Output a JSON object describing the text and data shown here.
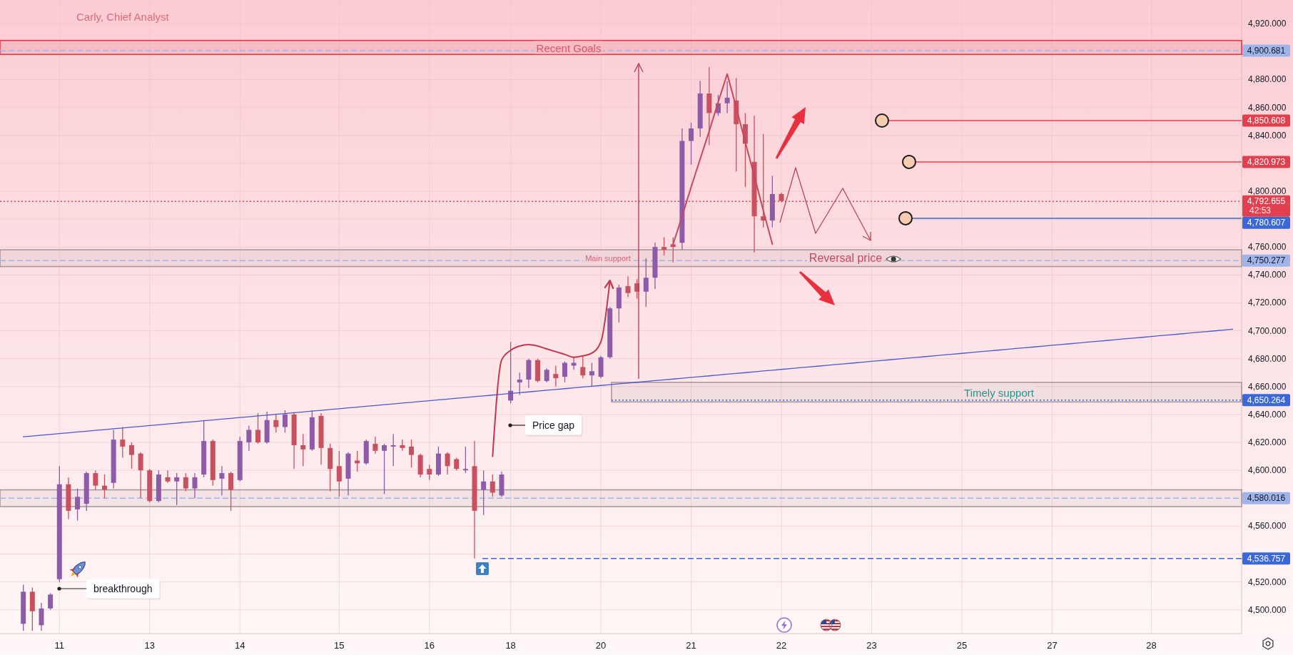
{
  "chart_data": {
    "type": "candlestick",
    "title": "Carly, Chief Analyst",
    "categories": [
      null,
      null,
      null,
      null,
      "11",
      null,
      null,
      null,
      null,
      null,
      null,
      null,
      null,
      null,
      "13",
      null,
      null,
      null,
      null,
      null,
      null,
      null,
      null,
      null,
      "14",
      null,
      null,
      null,
      null,
      null,
      null,
      null,
      null,
      null,
      null,
      "15",
      null,
      null,
      null,
      null,
      null,
      null,
      null,
      null,
      null,
      "16",
      null,
      null,
      null,
      null,
      null,
      null,
      null,
      null,
      "18",
      null,
      null,
      null,
      null,
      null,
      null,
      null,
      null,
      null,
      "20",
      null,
      null,
      null,
      null,
      null,
      null,
      null,
      null,
      null,
      "21",
      null,
      null,
      null,
      null,
      null,
      null,
      null,
      null,
      null,
      "22",
      null,
      null,
      null,
      null,
      null,
      null,
      null,
      null,
      null,
      "23",
      null,
      null,
      null,
      null,
      null,
      null,
      null,
      null,
      null,
      "25",
      null,
      null,
      null,
      null,
      null,
      null,
      null,
      null,
      null,
      "27",
      null,
      null,
      null,
      null,
      null,
      null,
      null,
      null,
      null,
      null,
      "28",
      null,
      null,
      null,
      null,
      null,
      null,
      null,
      null,
      null
    ],
    "ylim": [
      4483,
      4937
    ],
    "yticks": [
      {
        "value": 4500,
        "label": "4,500.000"
      },
      {
        "value": 4520,
        "label": "4,520.000"
      },
      {
        "value": 4540,
        "label": null
      },
      {
        "value": 4560,
        "label": "4,560.000"
      },
      {
        "value": 4600,
        "label": "4,600.000"
      },
      {
        "value": 4620,
        "label": "4,620.000"
      },
      {
        "value": 4640,
        "label": "4,640.000"
      },
      {
        "value": 4660,
        "label": "4,660.000"
      },
      {
        "value": 4680,
        "label": "4,680.000"
      },
      {
        "value": 4700,
        "label": "4,700.000"
      },
      {
        "value": 4720,
        "label": "4,720.000"
      },
      {
        "value": 4740,
        "label": "4,740.000"
      },
      {
        "value": 4760,
        "label": "4,760.000"
      },
      {
        "value": 4780,
        "label": null
      },
      {
        "value": 4800,
        "label": "4,800.000"
      },
      {
        "value": 4820,
        "label": null
      },
      {
        "value": 4840,
        "label": "4,840.000"
      },
      {
        "value": 4860,
        "label": "4,860.000"
      },
      {
        "value": 4880,
        "label": "4,880.000"
      },
      {
        "value": 4920,
        "label": "4,920.000"
      }
    ],
    "grid": true,
    "series": [
      {
        "ohlc": [
          [
            4490,
            4518,
            4485,
            4513
          ],
          [
            4513,
            4516,
            4485,
            4499
          ],
          [
            4489,
            4505,
            4485,
            4501
          ],
          [
            4501,
            4512,
            4500,
            4511
          ],
          [
            4522,
            4603,
            4520,
            4590
          ],
          [
            4590,
            4595,
            4565,
            4571
          ],
          [
            4572,
            4587,
            4564,
            4581
          ],
          [
            4576,
            4599,
            4571,
            4598
          ],
          [
            4598,
            4600,
            4586,
            4589
          ],
          [
            4589,
            4597,
            4580,
            4586
          ],
          [
            4591,
            4629,
            4587,
            4622
          ],
          [
            4622,
            4631,
            4609,
            4617
          ],
          [
            4618,
            4620,
            4601,
            4611
          ],
          [
            4612,
            4613,
            4580,
            4600
          ],
          [
            4600,
            4601,
            4577,
            4578
          ],
          [
            4578,
            4600,
            4577,
            4597
          ],
          [
            4595,
            4600,
            4591,
            4592
          ],
          [
            4592,
            4598,
            4575,
            4595
          ],
          [
            4595,
            4598,
            4585,
            4587
          ],
          [
            4587,
            4598,
            4580,
            4595
          ],
          [
            4597,
            4636,
            4595,
            4621
          ],
          [
            4621,
            4622,
            4589,
            4593
          ],
          [
            4594,
            4603,
            4582,
            4598
          ],
          [
            4598,
            4599,
            4571,
            4586
          ],
          [
            4593,
            4624,
            4592,
            4621
          ],
          [
            4620,
            4632,
            4614,
            4629
          ],
          [
            4629,
            4641,
            4619,
            4620
          ],
          [
            4620,
            4642,
            4619,
            4636
          ],
          [
            4636,
            4640,
            4627,
            4631
          ],
          [
            4631,
            4643,
            4627,
            4640
          ],
          [
            4640,
            4641,
            4601,
            4618
          ],
          [
            4618,
            4626,
            4603,
            4615
          ],
          [
            4615,
            4643,
            4614,
            4638
          ],
          [
            4639,
            4641,
            4604,
            4616
          ],
          [
            4616,
            4619,
            4585,
            4601
          ],
          [
            4603,
            4614,
            4581,
            4592
          ],
          [
            4594,
            4613,
            4582,
            4612
          ],
          [
            4607,
            4614,
            4599,
            4605
          ],
          [
            4605,
            4622,
            4604,
            4621
          ],
          [
            4619,
            4624,
            4612,
            4614
          ],
          [
            4614,
            4619,
            4583,
            4618
          ],
          [
            4617,
            4626,
            4603,
            4618
          ],
          [
            4618,
            4622,
            4614,
            4616
          ],
          [
            4617,
            4622,
            4602,
            4611
          ],
          [
            4611,
            4612,
            4595,
            4597
          ],
          [
            4601,
            4604,
            4593,
            4597
          ],
          [
            4597,
            4617,
            4596,
            4612
          ],
          [
            4612,
            4613,
            4597,
            4603
          ],
          [
            4608,
            4609,
            4600,
            4601
          ],
          [
            4600,
            4617,
            4598,
            4601
          ],
          [
            4603,
            4621,
            4537,
            4571
          ],
          [
            4586,
            4600,
            4568,
            4592
          ],
          [
            4592,
            4597,
            4581,
            4584
          ],
          [
            4582,
            4599,
            4581,
            4597
          ],
          [
            4650,
            4692,
            4648,
            4657
          ],
          [
            4663,
            4670,
            4654,
            4665
          ],
          [
            4665,
            4680,
            4659,
            4679
          ],
          [
            4679,
            4680,
            4663,
            4664
          ],
          [
            4664,
            4673,
            4663,
            4672
          ],
          [
            4669,
            4675,
            4660,
            4666
          ],
          [
            4667,
            4678,
            4663,
            4677
          ],
          [
            4675,
            4681,
            4672,
            4677
          ],
          [
            4674,
            4682,
            4666,
            4668
          ],
          [
            4668,
            4677,
            4660,
            4671
          ],
          [
            4667,
            4682,
            4666,
            4681
          ],
          [
            4681,
            4717,
            4680,
            4716
          ],
          [
            4716,
            4733,
            4706,
            4731
          ],
          [
            4732,
            4739,
            4724,
            4727
          ],
          [
            4734,
            4737,
            4723,
            4728
          ],
          [
            4728,
            4752,
            4717,
            4738
          ],
          [
            4738,
            4763,
            4730,
            4760
          ],
          [
            4760,
            4767,
            4754,
            4758
          ],
          [
            4762,
            4767,
            4749,
            4760
          ],
          [
            4763,
            4845,
            4758,
            4836
          ],
          [
            4836,
            4849,
            4819,
            4845
          ],
          [
            4845,
            4879,
            4839,
            4870
          ],
          [
            4870,
            4889,
            4833,
            4856
          ],
          [
            4856,
            4869,
            4854,
            4863
          ],
          [
            4863,
            4879,
            4856,
            4867
          ],
          [
            4865,
            4881,
            4814,
            4848
          ],
          [
            4848,
            4856,
            4803,
            4834
          ],
          [
            4821,
            4854,
            4756,
            4782
          ],
          [
            4782,
            4841,
            4774,
            4779
          ],
          [
            4779,
            4811,
            4774,
            4798
          ],
          [
            4798,
            4799,
            4792,
            4793
          ],
          null,
          null,
          null,
          null,
          null,
          null,
          null,
          null,
          null,
          null,
          null,
          null,
          null,
          null,
          null,
          null,
          null,
          null,
          null,
          null,
          null,
          null,
          null,
          null,
          null,
          null,
          null,
          null,
          null,
          null,
          null,
          null,
          null,
          null,
          null,
          null,
          null,
          null,
          null,
          null,
          null,
          null,
          null,
          null,
          null,
          null,
          null,
          null,
          null,
          null
        ],
        "colors": [
          "#8d5ba8",
          "#c8505f",
          "#8d5ba8",
          "#8d5ba8",
          "#8d5ba8",
          "#c8505f",
          "#8d5ba8",
          "#8d5ba8",
          "#c8505f",
          "#c8505f",
          "#8d5ba8",
          "#c8505f",
          "#c8505f",
          "#c8505f",
          "#c8505f",
          "#8d5ba8",
          "#c8505f",
          "#8d5ba8",
          "#c8505f",
          "#8d5ba8",
          "#8d5ba8",
          "#c8505f",
          "#8d5ba8",
          "#c8505f",
          "#8d5ba8",
          "#8d5ba8",
          "#c8505f",
          "#8d5ba8",
          "#c8505f",
          "#8d5ba8",
          "#c8505f",
          "#c8505f",
          "#8d5ba8",
          "#c8505f",
          "#c8505f",
          "#c8505f",
          "#8d5ba8",
          "#c8505f",
          "#8d5ba8",
          "#c8505f",
          "#8d5ba8",
          "#8d5ba8",
          "#c8505f",
          "#c8505f",
          "#c8505f",
          "#c8505f",
          "#8d5ba8",
          "#c8505f",
          "#c8505f",
          "#8d5ba8",
          "#c8505f",
          "#8d5ba8",
          "#c8505f",
          "#8d5ba8",
          "#8d5ba8",
          "#8d5ba8",
          "#8d5ba8",
          "#c8505f",
          "#8d5ba8",
          "#c8505f",
          "#8d5ba8",
          "#8d5ba8",
          "#c8505f",
          "#8d5ba8",
          "#8d5ba8",
          "#8d5ba8",
          "#8d5ba8",
          "#c8505f",
          "#c8505f",
          "#8d5ba8",
          "#8d5ba8",
          "#c8505f",
          "#c8505f",
          "#8d5ba8",
          "#8d5ba8",
          "#8d5ba8",
          "#c8505f",
          "#8d5ba8",
          "#8d5ba8",
          "#c8505f",
          "#c8505f",
          "#c8505f",
          "#c8505f",
          "#8d5ba8",
          "#c8505f",
          null,
          null,
          null,
          null,
          null,
          null,
          null,
          null,
          null,
          null,
          null,
          null,
          null,
          null,
          null,
          null,
          null,
          null,
          null,
          null,
          null,
          null,
          null,
          null,
          null,
          null,
          null,
          null,
          null,
          null,
          null,
          null,
          null,
          null,
          null,
          null,
          null,
          null,
          null,
          null,
          null,
          null,
          null,
          null,
          null,
          null,
          null,
          null,
          null,
          null
        ]
      },
      {
        "type": "line",
        "color": "#4b58cf",
        "values": [
          4624.0,
          4624.6,
          4625.2,
          4625.7,
          4626.3,
          4626.9,
          4627.5,
          4628.0,
          4628.6,
          4629.2,
          4629.8,
          4630.3,
          4630.9,
          4631.5,
          4632.1,
          4632.6,
          4633.2,
          4633.8,
          4634.4,
          4634.9,
          4635.5,
          4636.1,
          4636.7,
          4637.2,
          4637.8,
          4638.4,
          4639.0,
          4639.5,
          4640.1,
          4640.7,
          4641.3,
          4641.8,
          4642.4,
          4643.0,
          4643.6,
          4644.1,
          4644.7,
          4645.3,
          4645.9,
          4646.4,
          4647.0,
          4647.6,
          4648.2,
          4648.7,
          4649.3,
          4649.9,
          4650.5,
          4651.0,
          4651.6,
          4652.2,
          4652.8,
          4653.3,
          4653.9,
          4654.5,
          4655.1,
          4655.6,
          4656.2,
          4656.8,
          4657.4,
          4657.9,
          4658.5,
          4659.1,
          4659.7,
          4660.2,
          4660.8,
          4661.4,
          4662.0,
          4662.5,
          4663.1,
          4663.7,
          4664.3,
          4664.8,
          4665.4,
          4666.0,
          4666.6,
          4667.1,
          4667.7,
          4668.3,
          4668.9,
          4669.4,
          4670.0,
          4670.6,
          4671.2,
          4671.7,
          4672.3,
          4672.9,
          4673.5,
          4674.0,
          4674.6,
          4675.2,
          4675.8,
          4676.3,
          4676.9,
          4677.5,
          4678.1,
          4678.6,
          4679.2,
          4679.8,
          4680.4,
          4680.9,
          4681.5,
          4682.1,
          4682.7,
          4683.2,
          4683.8,
          4684.4,
          4685.0,
          4685.5,
          4686.1,
          4686.7,
          4687.3,
          4687.8,
          4688.4,
          4689.0,
          4689.6,
          4690.1,
          4690.7,
          4691.3,
          4691.9,
          4692.4,
          4693.0,
          4693.6,
          4694.2,
          4694.7,
          4695.3,
          4695.9,
          4696.5,
          4697.0,
          4697.6,
          4698.2,
          4698.8,
          4699.3,
          4699.9,
          4700.5,
          4701.1
        ]
      },
      {
        "type": "line",
        "color": "#c9475e",
        "values": [
          null,
          null,
          null,
          null,
          null,
          null,
          null,
          null,
          null,
          null,
          null,
          null,
          null,
          null,
          null,
          null,
          null,
          null,
          null,
          null,
          null,
          null,
          null,
          null,
          null,
          null,
          null,
          null,
          null,
          null,
          null,
          null,
          null,
          null,
          null,
          null,
          null,
          null,
          null,
          null,
          null,
          null,
          null,
          null,
          null,
          null,
          null,
          null,
          null,
          null,
          null,
          null,
          null,
          null,
          null,
          null,
          null,
          null,
          null,
          null,
          null,
          null,
          null,
          null,
          null,
          null,
          null,
          null,
          null,
          null,
          null,
          null,
          4762,
          4782,
          4803,
          4823,
          4843,
          4864,
          4884,
          4860,
          4835,
          4811,
          4786,
          4762,
          null,
          null,
          null,
          null,
          null,
          null,
          null,
          null,
          null,
          null,
          null,
          null,
          null,
          null,
          null,
          null,
          null,
          null,
          null,
          null,
          null,
          null,
          null,
          null,
          null,
          null,
          null,
          null,
          null,
          null,
          null,
          null,
          null,
          null,
          null,
          null,
          null,
          null,
          null,
          null,
          null,
          null,
          null,
          null,
          null,
          null,
          null,
          null,
          null,
          null,
          null
        ]
      },
      {
        "type": "line",
        "color": "#c0394f",
        "values": [
          null,
          null,
          null,
          null,
          null,
          null,
          null,
          null,
          null,
          null,
          null,
          null,
          null,
          null,
          null,
          null,
          null,
          null,
          null,
          null,
          null,
          null,
          null,
          null,
          null,
          null,
          null,
          null,
          null,
          null,
          null,
          null,
          null,
          null,
          null,
          null,
          null,
          null,
          null,
          null,
          null,
          null,
          null,
          null,
          null,
          null,
          null,
          null,
          null,
          null,
          null,
          null,
          4610,
          4679,
          4686,
          4689,
          4690,
          4689,
          4687,
          4685,
          4683,
          4681,
          4682,
          4684,
          4692,
          4736,
          null,
          null,
          null,
          null,
          null,
          null,
          null,
          null,
          null,
          null,
          null,
          null,
          null,
          null,
          null,
          null,
          null,
          null,
          null,
          null,
          null,
          null,
          null,
          null,
          null,
          null,
          null,
          null,
          null,
          null,
          null,
          null,
          null,
          null,
          null,
          null,
          null,
          null,
          null,
          null,
          null,
          null,
          null,
          null,
          null,
          null,
          null,
          null,
          null,
          null,
          null,
          null,
          null,
          null,
          null,
          null,
          null,
          null,
          null,
          null,
          null,
          null,
          null,
          null,
          null,
          null,
          null,
          null,
          null
        ]
      }
    ],
    "ref_lines": [
      {
        "axis": "y",
        "value": 4900.681,
        "label": "4,900.681",
        "color": "#9fb5ea",
        "line_style": "dashed"
      },
      {
        "axis": "y",
        "value": 4850.608,
        "label": "4,850.608",
        "color": "#e3404f",
        "line_style": "solid"
      },
      {
        "axis": "y",
        "value": 4820.973,
        "label": "4,820.973",
        "color": "#e3404f",
        "line_style": "solid"
      },
      {
        "axis": "y",
        "value": 4792.655,
        "label": "4,792.655",
        "color": "#e3404f",
        "line_style": "dotted"
      },
      {
        "axis": "y",
        "value": 4780.607,
        "label": "4,780.607",
        "color": "#3a68d8",
        "line_style": "solid"
      },
      {
        "axis": "y",
        "value": 4750.277,
        "label": "4,750.277",
        "color": "#9fb5ea",
        "line_style": "dashed"
      },
      {
        "axis": "y",
        "value": 4650.264,
        "label": "4,650.264",
        "color": "#3a68d8",
        "line_style": "dotted"
      },
      {
        "axis": "y",
        "value": 4580.016,
        "label": "4,580.016",
        "color": "#9fb5ea",
        "line_style": "dashed"
      },
      {
        "axis": "y",
        "value": 4536.757,
        "label": "4,536.757",
        "color": "#3a68d8",
        "line_style": "dashed"
      }
    ],
    "bands": [
      {
        "axis": "y",
        "from": 4898,
        "to": 4908,
        "label": "Recent Goals",
        "color": "#e0394a"
      },
      {
        "axis": "y",
        "from": 4746,
        "to": 4758,
        "label": "Main support",
        "color": "#a8999f"
      },
      {
        "axis": "y",
        "from": 4649,
        "to": 4663,
        "label": "Timely support",
        "color": "#a8999f"
      },
      {
        "axis": "y",
        "from": 4574,
        "to": 4586,
        "color": "#a8999f"
      }
    ],
    "annotations": [
      "breakthrough",
      "Price gap",
      "Reversal price",
      "42:53"
    ]
  }
}
